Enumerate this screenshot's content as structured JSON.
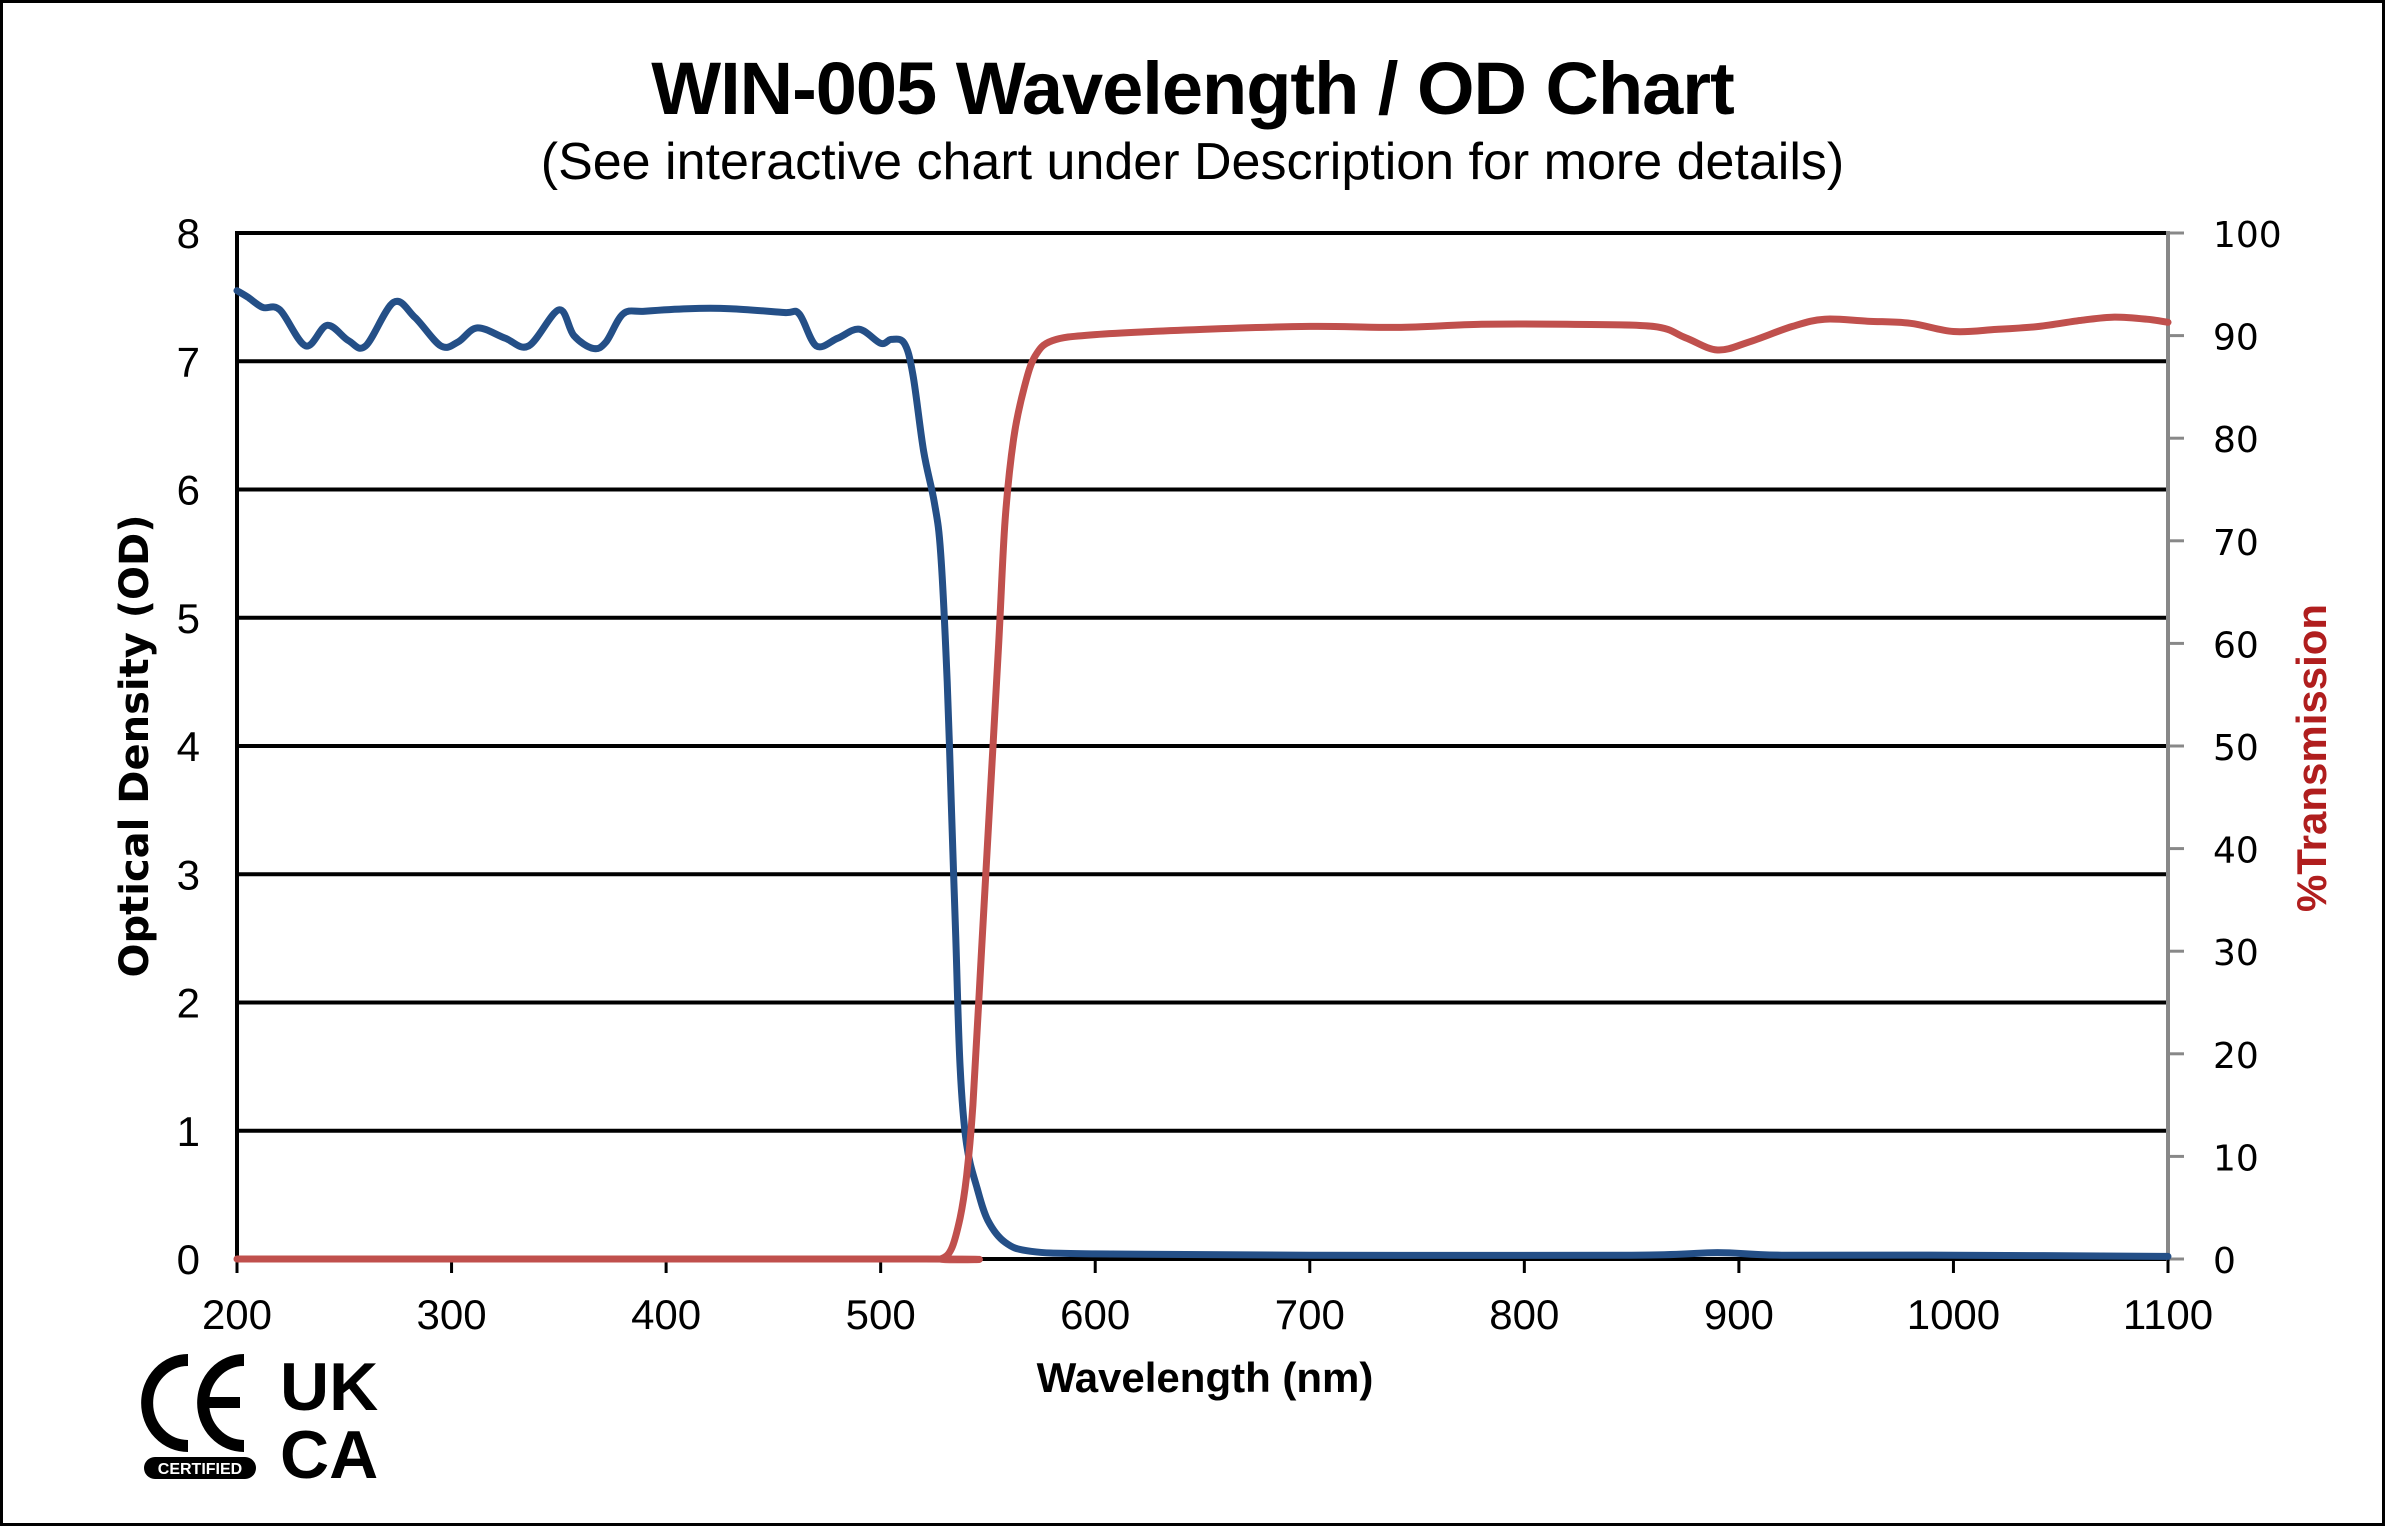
{
  "chart_data": {
    "type": "line",
    "title": "WIN-005 Wavelength / OD Chart",
    "subtitle": "(See interactive chart under Description for more details)",
    "xlabel": "Wavelength (nm)",
    "ylabel": "Optical Density (OD)",
    "y2label": "%Transmission",
    "xlim": [
      200,
      1100
    ],
    "ylim": [
      0,
      8
    ],
    "y2lim": [
      0,
      100
    ],
    "xticks": [
      "200",
      "300",
      "400",
      "500",
      "600",
      "700",
      "800",
      "900",
      "1000",
      "1100"
    ],
    "yticks": [
      "0",
      "1",
      "2",
      "3",
      "4",
      "5",
      "6",
      "7",
      "8"
    ],
    "y2ticks": [
      "0",
      "10",
      "20",
      "30",
      "40",
      "50",
      "60",
      "70",
      "80",
      "90",
      "100"
    ],
    "grid": true,
    "series": [
      {
        "name": "Optical Density",
        "axis": "left",
        "color": "#244f87",
        "x": [
          200,
          205,
          212,
          220,
          232,
          242,
          252,
          260,
          273,
          283,
          295,
          303,
          312,
          325,
          336,
          350,
          357,
          366,
          372,
          380,
          390,
          410,
          430,
          455,
          462,
          470,
          480,
          490,
          500,
          505,
          511,
          515,
          520,
          525,
          528,
          531,
          533,
          535,
          537,
          540,
          545,
          550,
          558,
          570,
          600,
          700,
          850,
          890,
          920,
          1000,
          1100
        ],
        "y": [
          7.55,
          7.5,
          7.42,
          7.4,
          7.12,
          7.28,
          7.16,
          7.12,
          7.46,
          7.34,
          7.12,
          7.15,
          7.26,
          7.18,
          7.12,
          7.4,
          7.2,
          7.1,
          7.15,
          7.37,
          7.39,
          7.41,
          7.41,
          7.38,
          7.37,
          7.12,
          7.18,
          7.25,
          7.14,
          7.17,
          7.14,
          6.9,
          6.3,
          5.9,
          5.5,
          4.5,
          3.5,
          2.5,
          1.5,
          0.9,
          0.55,
          0.3,
          0.13,
          0.06,
          0.04,
          0.03,
          0.03,
          0.05,
          0.03,
          0.03,
          0.02
        ]
      },
      {
        "name": "%Transmission",
        "axis": "right",
        "color": "#c0504d",
        "x": [
          200,
          520,
          528,
          533,
          537,
          540,
          543,
          547,
          551,
          555,
          558,
          562,
          567,
          572,
          580,
          600,
          650,
          700,
          740,
          780,
          820,
          860,
          875,
          890,
          905,
          925,
          940,
          960,
          980,
          1000,
          1020,
          1040,
          1060,
          1075,
          1090,
          1100
        ],
        "y": [
          0,
          0,
          0,
          1,
          4,
          8,
          15,
          30,
          45,
          60,
          72,
          80,
          85,
          88,
          89.5,
          90.1,
          90.6,
          90.9,
          90.8,
          91.1,
          91.1,
          90.9,
          89.8,
          88.6,
          89.4,
          90.9,
          91.6,
          91.4,
          91.2,
          90.4,
          90.6,
          90.9,
          91.5,
          91.8,
          91.6,
          91.3
        ]
      }
    ]
  },
  "logos": {
    "ce_mark": "CE",
    "ce_badge": "CERTIFIED",
    "ukca_line1": "UK",
    "ukca_line2": "CA"
  },
  "colors": {
    "od_axis_label": "#000000",
    "transmission_axis_label": "#b01e1e"
  }
}
